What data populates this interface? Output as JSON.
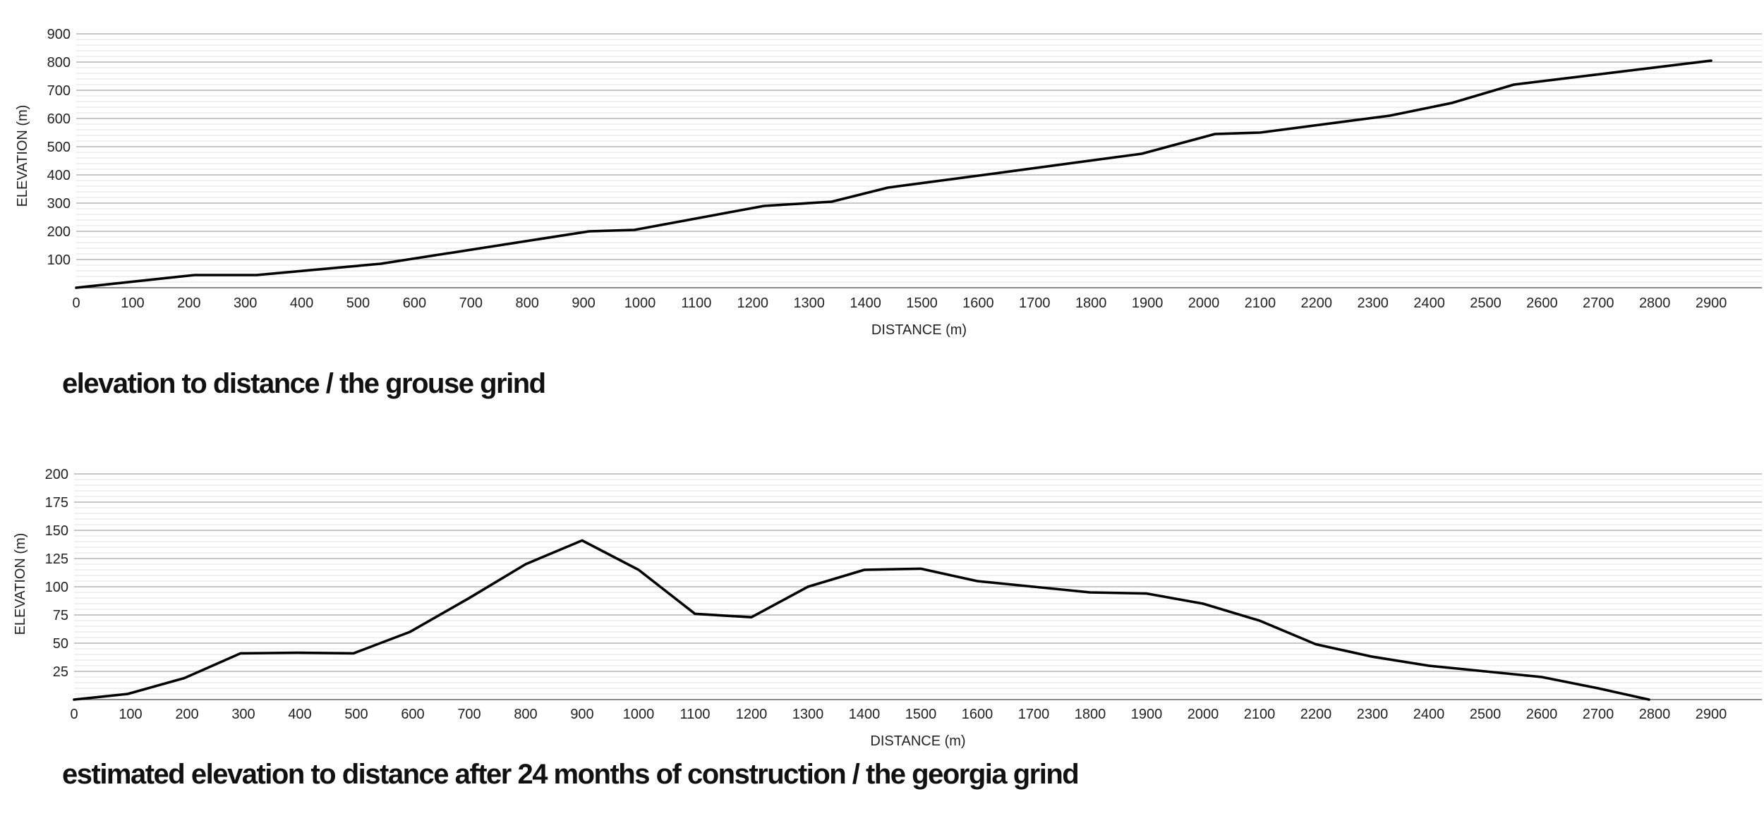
{
  "chart_data": [
    {
      "type": "line",
      "title": "elevation to distance / the grouse grind",
      "xlabel": "DISTANCE (m)",
      "ylabel": "ELEVATION (m)",
      "xlim": [
        0,
        2990
      ],
      "ylim": [
        0,
        900
      ],
      "x_ticks": [
        0,
        100,
        200,
        300,
        400,
        500,
        600,
        700,
        800,
        900,
        1000,
        1100,
        1200,
        1300,
        1400,
        1500,
        1600,
        1700,
        1800,
        1900,
        2000,
        2100,
        2200,
        2300,
        2400,
        2500,
        2600,
        2700,
        2800,
        2900
      ],
      "y_ticks": [
        100,
        200,
        300,
        400,
        500,
        600,
        700,
        800,
        900
      ],
      "y_minor_step": 20,
      "grid": true,
      "series": [
        {
          "name": "elevation",
          "x": [
            0,
            210,
            320,
            540,
            910,
            990,
            1220,
            1340,
            1440,
            1610,
            1890,
            2020,
            2100,
            2330,
            2440,
            2550,
            2900
          ],
          "y": [
            0,
            45,
            45,
            85,
            200,
            205,
            290,
            305,
            355,
            400,
            475,
            545,
            550,
            610,
            655,
            720,
            805
          ]
        }
      ]
    },
    {
      "type": "line",
      "title": "estimated elevation to distance after 24 months of construction / the georgia grind",
      "xlabel": "DISTANCE (m)",
      "ylabel": "ELEVATION (m)",
      "xlim": [
        0,
        2990
      ],
      "ylim": [
        0,
        200
      ],
      "x_ticks": [
        0,
        100,
        200,
        300,
        400,
        500,
        600,
        700,
        800,
        900,
        1000,
        1100,
        1200,
        1300,
        1400,
        1500,
        1600,
        1700,
        1800,
        1900,
        2000,
        2100,
        2200,
        2300,
        2400,
        2500,
        2600,
        2700,
        2800,
        2900
      ],
      "y_ticks": [
        25,
        50,
        75,
        100,
        125,
        150,
        175,
        200
      ],
      "y_minor_step": 5,
      "grid": true,
      "series": [
        {
          "name": "elevation",
          "x": [
            0,
            95,
            195,
            295,
            395,
            495,
            595,
            700,
            800,
            900,
            1000,
            1100,
            1200,
            1300,
            1400,
            1500,
            1600,
            1700,
            1800,
            1900,
            2000,
            2100,
            2200,
            2300,
            2400,
            2500,
            2600,
            2700,
            2790
          ],
          "y": [
            0,
            5,
            19,
            41,
            41.5,
            41,
            60,
            90,
            120,
            141,
            115,
            76,
            73,
            100,
            115,
            116,
            105,
            100,
            95,
            94,
            85,
            70,
            49,
            38,
            30,
            25,
            20,
            10,
            0
          ]
        }
      ]
    }
  ]
}
